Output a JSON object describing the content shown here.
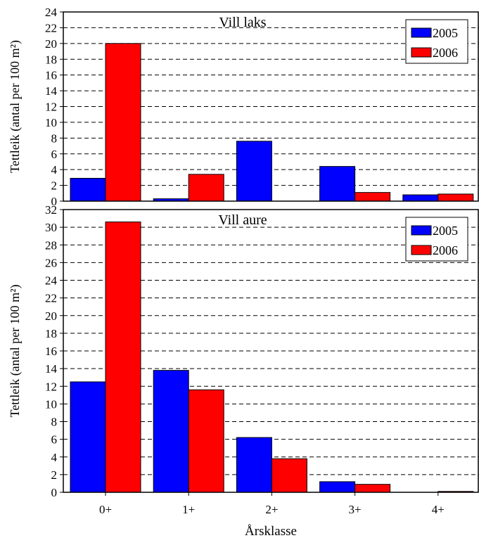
{
  "chart_data": [
    {
      "type": "bar",
      "title": "Vill laks",
      "ylabel": "Tettleik (antal per 100 m²)",
      "xlabel": "",
      "ylim": [
        0,
        24
      ],
      "yticks": [
        0,
        2,
        4,
        6,
        8,
        10,
        12,
        14,
        16,
        18,
        20,
        22,
        24
      ],
      "grid": true,
      "legend_position": "top-right",
      "categories": [
        "0+",
        "1+",
        "2+",
        "3+",
        "4+"
      ],
      "series": [
        {
          "name": "2005",
          "color": "#0000FF",
          "values": [
            2.9,
            0.3,
            7.6,
            4.4,
            0.8
          ]
        },
        {
          "name": "2006",
          "color": "#FF0000",
          "values": [
            20.0,
            3.4,
            0.0,
            1.1,
            0.9
          ]
        }
      ]
    },
    {
      "type": "bar",
      "title": "Vill aure",
      "ylabel": "Tettleik (antal per 100 m²)",
      "xlabel": "Årsklasse",
      "ylim": [
        0,
        32
      ],
      "yticks": [
        0,
        2,
        4,
        6,
        8,
        10,
        12,
        14,
        16,
        18,
        20,
        22,
        24,
        26,
        28,
        30,
        32
      ],
      "grid": true,
      "legend_position": "top-right",
      "categories": [
        "0+",
        "1+",
        "2+",
        "3+",
        "4+"
      ],
      "series": [
        {
          "name": "2005",
          "color": "#0000FF",
          "values": [
            12.5,
            13.8,
            6.2,
            1.2,
            0.0
          ]
        },
        {
          "name": "2006",
          "color": "#FF0000",
          "values": [
            30.6,
            11.6,
            3.8,
            0.9,
            0.1
          ]
        }
      ]
    }
  ]
}
